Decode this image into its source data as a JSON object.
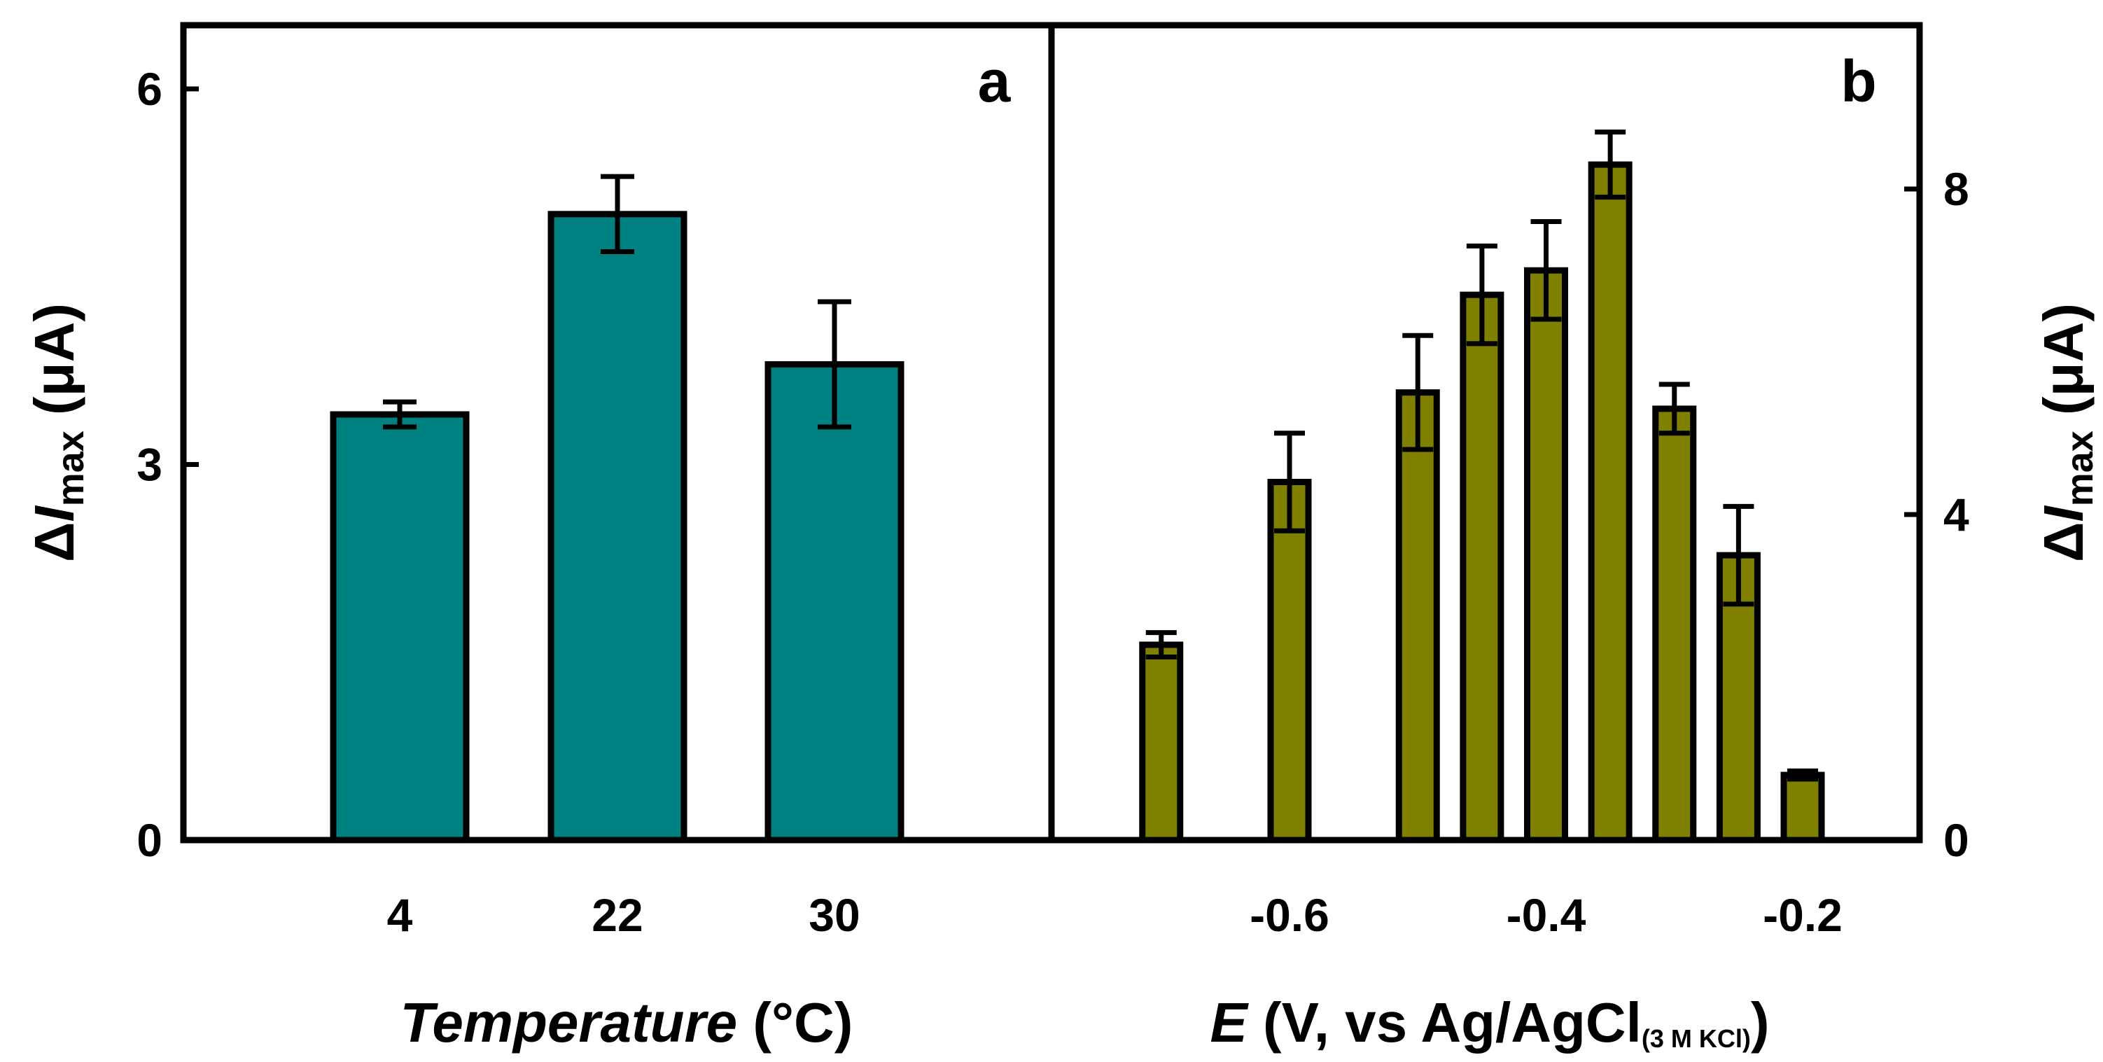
{
  "chart_data": [
    {
      "type": "bar",
      "panel_label": "a",
      "categories": [
        "4",
        "22",
        "30"
      ],
      "values": [
        3.4,
        5.0,
        3.8
      ],
      "errors": [
        0.1,
        0.3,
        0.5
      ],
      "bar_color": "#008080",
      "ylabel": {
        "prefix": "Δ",
        "italic": "I",
        "sub": "max",
        "suffix": " (μA)"
      },
      "xlabel": {
        "italic": "Temperature",
        "suffix": " (°C)"
      },
      "ylim": [
        0,
        6
      ],
      "yticks": [
        0,
        3,
        6
      ],
      "yaxis_side": "left",
      "grid": false
    },
    {
      "type": "bar",
      "panel_label": "b",
      "x": [
        -0.7,
        -0.6,
        -0.5,
        -0.45,
        -0.4,
        -0.35,
        -0.3,
        -0.25,
        -0.2
      ],
      "values": [
        2.4,
        4.4,
        5.5,
        6.7,
        7.0,
        8.3,
        5.3,
        3.5,
        0.8
      ],
      "errors": [
        0.15,
        0.6,
        0.7,
        0.6,
        0.6,
        0.4,
        0.3,
        0.6,
        0.05
      ],
      "bar_color": "#808000",
      "ylabel": {
        "prefix": "Δ",
        "italic": "I",
        "sub": "max",
        "suffix": " (μA)"
      },
      "xlabel": {
        "italic": "E",
        "text": " (V, vs Ag/AgCl",
        "sub": "(3 M KCl)",
        "close": ")"
      },
      "xlim": [
        -0.77,
        -0.15
      ],
      "xticks": [
        "-0.6",
        "-0.4",
        "-0.2"
      ],
      "xtick_values": [
        -0.6,
        -0.4,
        -0.2
      ],
      "ylim": [
        0,
        9.6
      ],
      "yticks": [
        0,
        4,
        8
      ],
      "yaxis_side": "right",
      "grid": false
    }
  ]
}
